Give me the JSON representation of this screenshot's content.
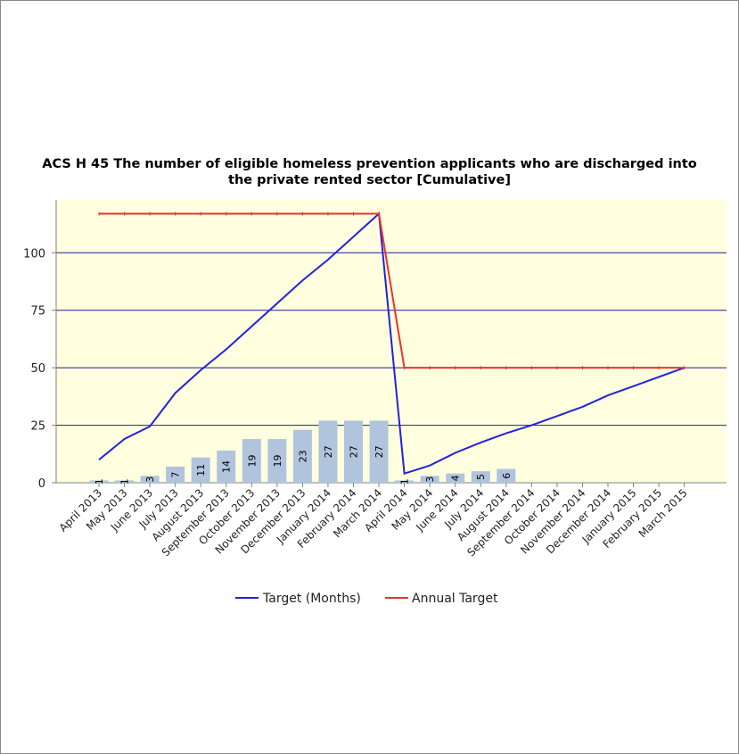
{
  "chart_data": {
    "type": "bar",
    "title_lines": [
      "ACS H 45 The number of eligible homeless prevention applicants who are discharged into",
      "the private rented sector [Cumulative]"
    ],
    "categories": [
      "April 2013",
      "May 2013",
      "June 2013",
      "July 2013",
      "August 2013",
      "September 2013",
      "October 2013",
      "November 2013",
      "December 2013",
      "January 2014",
      "February 2014",
      "March 2014",
      "April 2014",
      "May 2014",
      "June 2014",
      "July 2014",
      "August 2014",
      "September 2014",
      "October 2014",
      "November 2014",
      "December 2014",
      "January 2015",
      "February 2015",
      "March 2015"
    ],
    "bars": {
      "color": "#b0c4de",
      "values": [
        1,
        1,
        3,
        7,
        11,
        14,
        19,
        19,
        23,
        27,
        27,
        27,
        1,
        3,
        4,
        5,
        6,
        null,
        null,
        null,
        null,
        null,
        null,
        null
      ],
      "labels": [
        "1",
        "1",
        "3",
        "7",
        "11",
        "14",
        "19",
        "19",
        "23",
        "27",
        "27",
        "27",
        "1",
        "3",
        "4",
        "5",
        "6",
        "",
        "",
        "",
        "",
        "",
        "",
        ""
      ]
    },
    "series": [
      {
        "name": "Target (Months)",
        "type": "line",
        "color": "#2222dd",
        "values": [
          10,
          19,
          24.5,
          39,
          49,
          58,
          68,
          78,
          88,
          97,
          107,
          117,
          4,
          7.5,
          13,
          17.5,
          21.5,
          25,
          29,
          33,
          38,
          42,
          46,
          50
        ]
      },
      {
        "name": "Annual Target",
        "type": "line",
        "color": "#e8342a",
        "values": [
          117,
          117,
          117,
          117,
          117,
          117,
          117,
          117,
          117,
          117,
          117,
          117,
          50,
          50,
          50,
          50,
          50,
          50,
          50,
          50,
          50,
          50,
          50,
          50
        ]
      }
    ],
    "ylim": [
      0,
      123
    ],
    "yticks": [
      0,
      25,
      50,
      75,
      100
    ],
    "plot_background": "#ffffe0",
    "grid_color": "#1f1f8c",
    "grid": true,
    "legend_position": "bottom"
  }
}
